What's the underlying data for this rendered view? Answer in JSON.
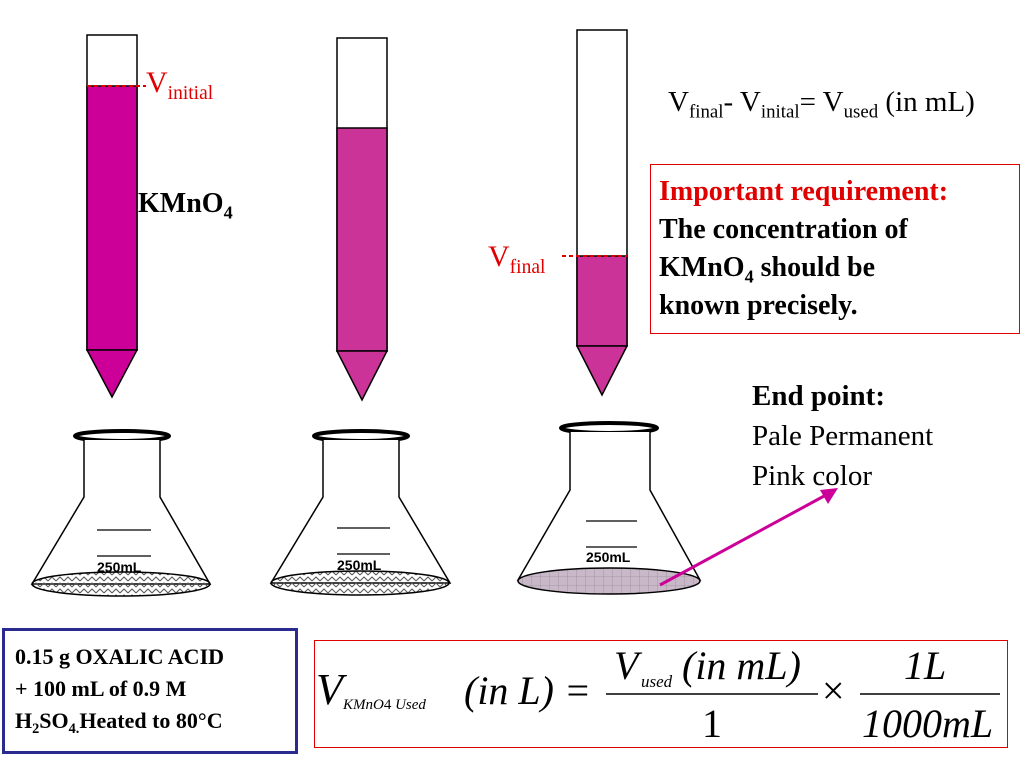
{
  "labels": {
    "v_initial": {
      "main": "V",
      "sub": "initial"
    },
    "v_final": {
      "main": "V",
      "sub": "final"
    },
    "kmno4": {
      "main": "KMnO",
      "sub": "4"
    }
  },
  "top_equation": {
    "v1": "V",
    "s1": "final",
    "minus": "- ",
    "v2": "V",
    "s2": "inital",
    "eq": "= ",
    "v3": "V",
    "s3": "used",
    "unit": " (in mL)"
  },
  "requirement": {
    "title": "Important requirement:",
    "line1": "The concentration of",
    "line2_pre": "KMnO",
    "line2_sub": "4",
    "line2_post": " should be",
    "line3": "known precisely."
  },
  "end_point": {
    "title": "End point:",
    "line1": "Pale Permanent",
    "line2": "Pink color"
  },
  "oxalic": {
    "line1": "0.15 g OXALIC ACID",
    "line2": "+ 100 mL of 0.9 M",
    "l3a": "H",
    "l3b": "2",
    "l3c": "SO",
    "l3d": "4.",
    "l3e": "Heated to 80°C"
  },
  "formula": {
    "V": "V",
    "sub_a": "KMnO",
    "sub_b": "4",
    "sub_c": " Used",
    "lhs_unit": "(in L) =",
    "num_V": "V",
    "num_sub": "used",
    "num_unit": "(in mL)",
    "den": "1",
    "times": "×",
    "num2": "1L",
    "den2": "1000mL"
  },
  "flasks": [
    {
      "label": "250mL"
    },
    {
      "label": "250mL"
    },
    {
      "label": "250mL"
    }
  ],
  "colors": {
    "solution": "#cc0099",
    "solution_light": "#cc3399",
    "red": "#e00000",
    "box_blue": "#2b2b8f",
    "final_liquid": "#c8b8c8",
    "arrow": "#cc0099"
  }
}
